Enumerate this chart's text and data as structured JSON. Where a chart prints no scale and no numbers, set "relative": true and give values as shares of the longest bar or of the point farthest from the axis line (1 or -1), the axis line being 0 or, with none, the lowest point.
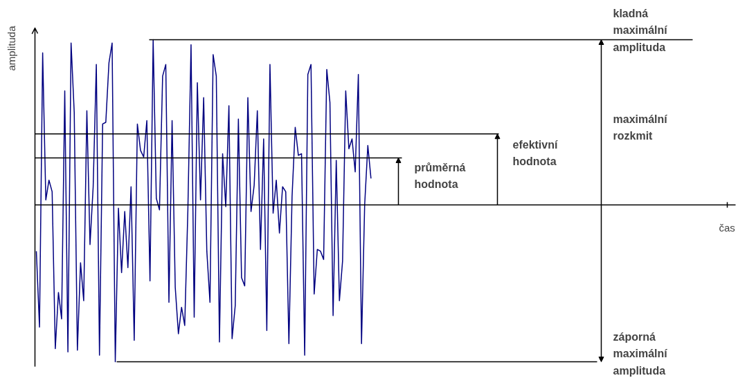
{
  "chart_data": {
    "type": "line",
    "relative": true,
    "ylabel": "amplituda",
    "categories": [
      null,
      null,
      null,
      null,
      null,
      null,
      null,
      null,
      null,
      null,
      null,
      null,
      null,
      null,
      null,
      null,
      null,
      null,
      null,
      null,
      null,
      null,
      null,
      null,
      null,
      null,
      null,
      null,
      null,
      null,
      null,
      null,
      null,
      null,
      null,
      null,
      null,
      null,
      null,
      null,
      null,
      null,
      null,
      null,
      null,
      null,
      null,
      null,
      null,
      null,
      null,
      null,
      null,
      null,
      null,
      null,
      null,
      null,
      null,
      null,
      null,
      null,
      null,
      null,
      null,
      null,
      null,
      null,
      null,
      null,
      null,
      null,
      null,
      null,
      null,
      null,
      null,
      null,
      null,
      null,
      null,
      null,
      null,
      null,
      null,
      null,
      null,
      null,
      null,
      null,
      null,
      null,
      null,
      null,
      null,
      null,
      null,
      null,
      null,
      null,
      null,
      null,
      null,
      null,
      null,
      null,
      null
    ],
    "series": [
      {
        "color": "#000080",
        "values": [
          -0.28,
          -0.74,
          0.92,
          0.03,
          0.15,
          0.08,
          -0.87,
          -0.53,
          -0.69,
          0.69,
          -0.89,
          0.98,
          0.56,
          -0.88,
          -0.35,
          -0.58,
          0.57,
          -0.24,
          0.11,
          0.85,
          -0.91,
          0.49,
          0.5,
          0.86,
          0.98,
          -0.95,
          -0.02,
          -0.41,
          -0.04,
          -0.38,
          0.11,
          -0.82,
          0.49,
          0.33,
          0.29,
          0.51,
          -0.46,
          1.0,
          0.04,
          -0.03,
          0.78,
          0.85,
          -0.59,
          0.51,
          -0.5,
          -0.78,
          -0.62,
          -0.73,
          -0.03,
          0.97,
          -0.68,
          0.74,
          0.03,
          0.65,
          -0.28,
          -0.59,
          0.91,
          0.78,
          -0.83,
          0.31,
          -0.01,
          0.6,
          -0.81,
          -0.61,
          0.52,
          -0.44,
          -0.49,
          0.65,
          -0.04,
          0.12,
          0.57,
          -0.27,
          0.4,
          -0.76,
          0.85,
          -0.05,
          0.15,
          -0.17,
          0.11,
          0.08,
          -0.84,
          0.05,
          0.47,
          0.3,
          0.31,
          -0.91,
          0.79,
          0.85,
          -0.54,
          -0.27,
          -0.28,
          -0.33,
          0.82,
          0.62,
          -0.67,
          0.27,
          -0.58,
          -0.34,
          0.69,
          0.34,
          0.4,
          0.2,
          0.79,
          -0.84,
          0.0,
          0.36,
          0.16
        ]
      }
    ],
    "ref_lines": [
      {
        "axis": "y",
        "value": 1.0,
        "label": "kladná maximální amplituda",
        "color": "#000000"
      },
      {
        "axis": "y",
        "value": 0.43,
        "label": "efektivní hodnota",
        "color": "#000000"
      },
      {
        "axis": "y",
        "value": 0.285,
        "label": "průměrná hodnota",
        "color": "#000000"
      },
      {
        "axis": "y",
        "value": -0.95,
        "label": "záporná maximální amplituda",
        "color": "#000000"
      }
    ],
    "annotations": [
      "maximální rozkmit",
      "čas"
    ],
    "grid": false,
    "marker": "none",
    "line_style": "solid"
  }
}
